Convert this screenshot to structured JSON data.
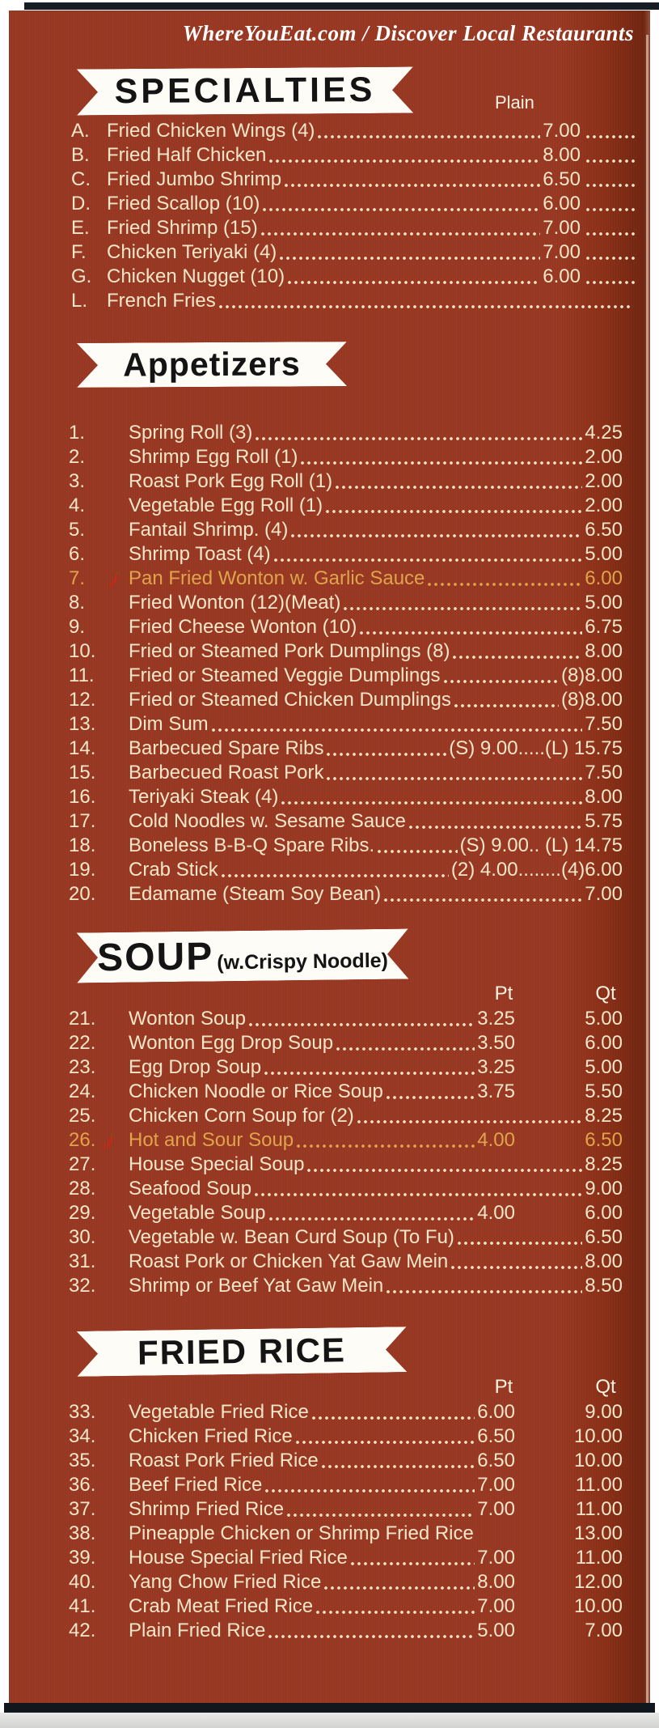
{
  "site_header": {
    "text": "WhereYouEat.com / Discover Local Restaurants"
  },
  "colors": {
    "background_red": "#9B3A24",
    "item_text": "#F4E6C8",
    "spicy_text": "#E0A44C",
    "banner_bg": "#FDFCF7",
    "banner_text": "#141414",
    "header_text": "#FFFFFF",
    "chili_red": "#C62717"
  },
  "icons": {
    "spicy": "chili-pepper-icon"
  },
  "sections": [
    {
      "id": "specialties",
      "title": "SPECIALTIES",
      "subtitle": "",
      "columns": [
        "Plain"
      ],
      "layout": "single-trail",
      "items": [
        {
          "num": "A.",
          "name": "Fried Chicken Wings (4)",
          "price": "7.00"
        },
        {
          "num": "B.",
          "name": "Fried Half Chicken",
          "price": "8.00"
        },
        {
          "num": "C.",
          "name": "Fried Jumbo Shrimp",
          "price": "6.50"
        },
        {
          "num": "D.",
          "name": "Fried Scallop (10)",
          "price": "6.00"
        },
        {
          "num": "E.",
          "name": "Fried Shrimp (15)",
          "price": "7.00"
        },
        {
          "num": "F.",
          "name": "Chicken Teriyaki (4)",
          "price": "7.00"
        },
        {
          "num": "G.",
          "name": "Chicken Nugget (10)",
          "price": "6.00"
        },
        {
          "num": "L.",
          "name": "French Fries",
          "price": ""
        }
      ]
    },
    {
      "id": "appetizers",
      "title": "Appetizers",
      "subtitle": "",
      "columns": [],
      "layout": "single",
      "items": [
        {
          "num": "1.",
          "name": "Spring Roll (3)",
          "price": "4.25"
        },
        {
          "num": "2.",
          "name": "Shrimp Egg Roll (1)",
          "price": "2.00"
        },
        {
          "num": "3.",
          "name": "Roast Pork Egg Roll (1)",
          "price": "2.00"
        },
        {
          "num": "4.",
          "name": "Vegetable Egg Roll (1)",
          "price": "2.00"
        },
        {
          "num": "5.",
          "name": "Fantail Shrimp. (4)",
          "price": "6.50"
        },
        {
          "num": "6.",
          "name": "Shrimp Toast (4)",
          "price": "5.00"
        },
        {
          "num": "7.",
          "name": "Pan Fried Wonton w. Garlic Sauce",
          "price": "6.00",
          "spicy": true
        },
        {
          "num": "8.",
          "name": "Fried Wonton (12)(Meat)",
          "price": "5.00"
        },
        {
          "num": "9.",
          "name": "Fried Cheese Wonton (10)",
          "price": "6.75"
        },
        {
          "num": "10.",
          "name": "Fried or Steamed Pork Dumplings (8)",
          "price": "8.00"
        },
        {
          "num": "11.",
          "name": "Fried or Steamed Veggie Dumplings",
          "price": "(8)8.00"
        },
        {
          "num": "12.",
          "name": "Fried or Steamed Chicken Dumplings",
          "price": "(8)8.00"
        },
        {
          "num": "13.",
          "name": "Dim Sum",
          "price": "7.50"
        },
        {
          "num": "14.",
          "name": "Barbecued Spare Ribs",
          "price": "(S) 9.00.....(L) 15.75"
        },
        {
          "num": "15.",
          "name": "Barbecued Roast Pork",
          "price": "7.50"
        },
        {
          "num": "16.",
          "name": "Teriyaki Steak (4)",
          "price": "8.00"
        },
        {
          "num": "17.",
          "name": "Cold Noodles w. Sesame Sauce",
          "price": "5.75"
        },
        {
          "num": "18.",
          "name": "Boneless B-B-Q Spare Ribs.",
          "price": "(S) 9.00.. (L) 14.75"
        },
        {
          "num": "19.",
          "name": "Crab Stick",
          "price": "(2) 4.00........(4)6.00"
        },
        {
          "num": "20.",
          "name": "Edamame (Steam Soy Bean)",
          "price": "7.00"
        }
      ]
    },
    {
      "id": "soup",
      "title": "SOUP",
      "subtitle": "(w.Crispy Noodle)",
      "columns": [
        "Pt",
        "Qt"
      ],
      "layout": "double",
      "items": [
        {
          "num": "21.",
          "name": "Wonton Soup",
          "pt": "3.25",
          "qt": "5.00"
        },
        {
          "num": "22.",
          "name": "Wonton Egg Drop Soup",
          "pt": "3.50",
          "qt": "6.00"
        },
        {
          "num": "23.",
          "name": "Egg Drop Soup",
          "pt": "3.25",
          "qt": "5.00"
        },
        {
          "num": "24.",
          "name": "Chicken Noodle or Rice Soup",
          "pt": "3.75",
          "qt": "5.50"
        },
        {
          "num": "25.",
          "name": "Chicken Corn Soup for (2)",
          "price": "8.25"
        },
        {
          "num": "26.",
          "name": "Hot and Sour Soup",
          "pt": "4.00",
          "qt": "6.50",
          "spicy": true
        },
        {
          "num": "27.",
          "name": "House Special Soup",
          "price": "8.25"
        },
        {
          "num": "28.",
          "name": "Seafood Soup",
          "price": "9.00"
        },
        {
          "num": "29.",
          "name": "Vegetable Soup",
          "pt": "4.00",
          "qt": "6.00"
        },
        {
          "num": "30.",
          "name": "Vegetable w. Bean Curd Soup (To Fu)",
          "price": "6.50"
        },
        {
          "num": "31.",
          "name": "Roast Pork or Chicken Yat Gaw Mein",
          "price": "8.00"
        },
        {
          "num": "32.",
          "name": "Shrimp or Beef Yat Gaw Mein",
          "price": "8.50"
        }
      ]
    },
    {
      "id": "fried-rice",
      "title": "FRIED RICE",
      "subtitle": "",
      "columns": [
        "Pt",
        "Qt"
      ],
      "layout": "double",
      "items": [
        {
          "num": "33.",
          "name": "Vegetable Fried Rice",
          "pt": "6.00",
          "qt": "9.00"
        },
        {
          "num": "34.",
          "name": "Chicken Fried Rice",
          "pt": "6.50",
          "qt": "10.00"
        },
        {
          "num": "35.",
          "name": "Roast Pork Fried Rice",
          "pt": "6.50",
          "qt": "10.00"
        },
        {
          "num": "36.",
          "name": "Beef Fried Rice",
          "pt": "7.00",
          "qt": "11.00"
        },
        {
          "num": "37.",
          "name": "Shrimp Fried Rice",
          "pt": "7.00",
          "qt": "11.00"
        },
        {
          "num": "38.",
          "name": "Pineapple Chicken or Shrimp Fried Rice",
          "price": "13.00",
          "nodots": true
        },
        {
          "num": "39.",
          "name": "House Special Fried Rice",
          "pt": "7.00",
          "qt": "11.00"
        },
        {
          "num": "40.",
          "name": "Yang Chow Fried Rice",
          "pt": "8.00",
          "qt": "12.00"
        },
        {
          "num": "41.",
          "name": "Crab Meat Fried Rice",
          "pt": "7.00",
          "qt": "10.00"
        },
        {
          "num": "42.",
          "name": "Plain Fried Rice",
          "pt": "5.00",
          "qt": "7.00"
        }
      ]
    }
  ]
}
